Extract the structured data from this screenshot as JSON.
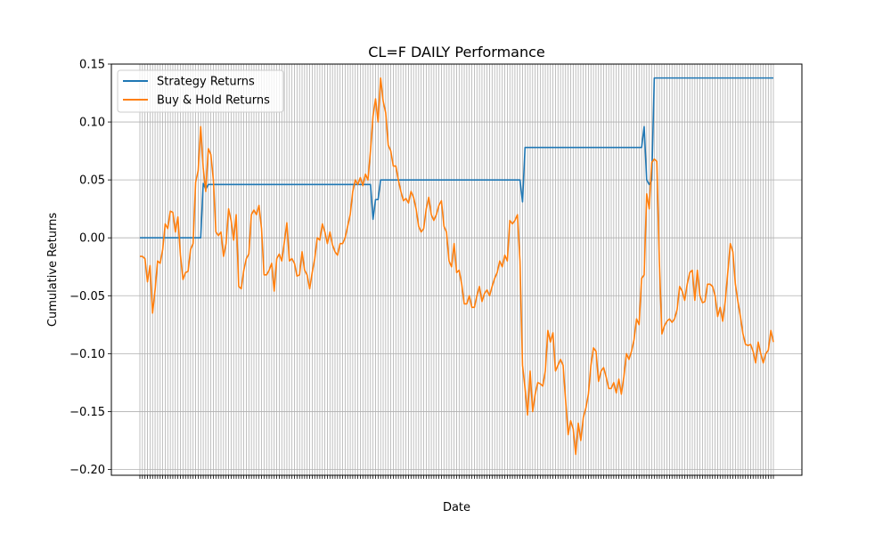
{
  "chart_data": {
    "type": "line",
    "title": "CL=F DAILY Performance",
    "xlabel": "Date",
    "ylabel": "Cumulative Returns",
    "ylim": [
      -0.205,
      0.15
    ],
    "yticks": [
      "0.15",
      "0.10",
      "0.05",
      "0.00",
      "−0.05",
      "−0.10",
      "−0.15",
      "−0.20"
    ],
    "ytick_values": [
      0.15,
      0.1,
      0.05,
      0.0,
      -0.05,
      -0.1,
      -0.15,
      -0.2
    ],
    "grid": true,
    "legend_position": "top-left",
    "n_points": 251,
    "series": [
      {
        "name": "Strategy Returns",
        "color": "#1f77b4",
        "keypoints": [
          [
            0,
            0.0
          ],
          [
            24,
            0.0
          ],
          [
            25,
            0.047
          ],
          [
            26,
            0.042
          ],
          [
            27,
            0.046
          ],
          [
            90,
            0.046
          ],
          [
            91,
            0.046
          ],
          [
            92,
            0.016
          ],
          [
            93,
            0.033
          ],
          [
            94,
            0.033
          ],
          [
            95,
            0.05
          ],
          [
            96,
            0.05
          ],
          [
            150,
            0.05
          ],
          [
            151,
            0.031
          ],
          [
            152,
            0.078
          ],
          [
            198,
            0.078
          ],
          [
            199,
            0.096
          ],
          [
            200,
            0.05
          ],
          [
            201,
            0.046
          ],
          [
            202,
            0.05
          ],
          [
            203,
            0.138
          ],
          [
            250,
            0.138
          ]
        ]
      },
      {
        "name": "Buy & Hold Returns",
        "color": "#ff7f0e",
        "keypoints": [
          [
            0,
            -0.016
          ],
          [
            1,
            -0.016
          ],
          [
            2,
            -0.018
          ],
          [
            3,
            -0.038
          ],
          [
            4,
            -0.024
          ],
          [
            5,
            -0.065
          ],
          [
            6,
            -0.045
          ],
          [
            7,
            -0.02
          ],
          [
            8,
            -0.022
          ],
          [
            9,
            -0.01
          ],
          [
            10,
            0.012
          ],
          [
            11,
            0.008
          ],
          [
            12,
            0.023
          ],
          [
            13,
            0.022
          ],
          [
            14,
            0.005
          ],
          [
            15,
            0.018
          ],
          [
            16,
            -0.015
          ],
          [
            17,
            -0.036
          ],
          [
            18,
            -0.03
          ],
          [
            19,
            -0.029
          ],
          [
            20,
            -0.01
          ],
          [
            21,
            -0.005
          ],
          [
            22,
            0.048
          ],
          [
            23,
            0.058
          ],
          [
            24,
            0.096
          ],
          [
            25,
            0.06
          ],
          [
            26,
            0.04
          ],
          [
            27,
            0.077
          ],
          [
            28,
            0.072
          ],
          [
            29,
            0.05
          ],
          [
            30,
            0.005
          ],
          [
            31,
            0.002
          ],
          [
            32,
            0.005
          ],
          [
            33,
            -0.016
          ],
          [
            34,
            -0.005
          ],
          [
            35,
            0.025
          ],
          [
            36,
            0.015
          ],
          [
            37,
            -0.002
          ],
          [
            38,
            0.02
          ],
          [
            39,
            -0.042
          ],
          [
            40,
            -0.044
          ],
          [
            41,
            -0.028
          ],
          [
            42,
            -0.018
          ],
          [
            43,
            -0.014
          ],
          [
            44,
            0.02
          ],
          [
            45,
            0.024
          ],
          [
            46,
            0.02
          ],
          [
            47,
            0.028
          ],
          [
            48,
            0.008
          ],
          [
            49,
            -0.032
          ],
          [
            50,
            -0.032
          ],
          [
            51,
            -0.028
          ],
          [
            52,
            -0.022
          ],
          [
            53,
            -0.046
          ],
          [
            54,
            -0.018
          ],
          [
            55,
            -0.014
          ],
          [
            56,
            -0.02
          ],
          [
            57,
            -0.004
          ],
          [
            58,
            0.013
          ],
          [
            59,
            -0.02
          ],
          [
            60,
            -0.018
          ],
          [
            61,
            -0.022
          ],
          [
            62,
            -0.033
          ],
          [
            63,
            -0.032
          ],
          [
            64,
            -0.012
          ],
          [
            65,
            -0.028
          ],
          [
            66,
            -0.032
          ],
          [
            67,
            -0.044
          ],
          [
            68,
            -0.03
          ],
          [
            69,
            -0.018
          ],
          [
            70,
            0.0
          ],
          [
            71,
            -0.002
          ],
          [
            72,
            0.012
          ],
          [
            73,
            0.005
          ],
          [
            74,
            -0.005
          ],
          [
            75,
            0.005
          ],
          [
            76,
            -0.006
          ],
          [
            77,
            -0.012
          ],
          [
            78,
            -0.015
          ],
          [
            79,
            -0.005
          ],
          [
            80,
            -0.005
          ],
          [
            81,
            0.0
          ],
          [
            82,
            0.01
          ],
          [
            83,
            0.02
          ],
          [
            84,
            0.04
          ],
          [
            85,
            0.05
          ],
          [
            86,
            0.046
          ],
          [
            87,
            0.052
          ],
          [
            88,
            0.045
          ],
          [
            89,
            0.055
          ],
          [
            90,
            0.05
          ],
          [
            91,
            0.075
          ],
          [
            92,
            0.105
          ],
          [
            93,
            0.12
          ],
          [
            94,
            0.1
          ],
          [
            95,
            0.138
          ],
          [
            96,
            0.118
          ],
          [
            97,
            0.108
          ],
          [
            98,
            0.08
          ],
          [
            99,
            0.075
          ],
          [
            100,
            0.062
          ],
          [
            101,
            0.062
          ],
          [
            102,
            0.05
          ],
          [
            103,
            0.04
          ],
          [
            104,
            0.032
          ],
          [
            105,
            0.034
          ],
          [
            106,
            0.03
          ],
          [
            107,
            0.04
          ],
          [
            108,
            0.035
          ],
          [
            109,
            0.025
          ],
          [
            110,
            0.01
          ],
          [
            111,
            0.005
          ],
          [
            112,
            0.008
          ],
          [
            113,
            0.025
          ],
          [
            114,
            0.035
          ],
          [
            115,
            0.02
          ],
          [
            116,
            0.015
          ],
          [
            117,
            0.02
          ],
          [
            118,
            0.028
          ],
          [
            119,
            0.032
          ],
          [
            120,
            0.01
          ],
          [
            121,
            0.005
          ],
          [
            122,
            -0.02
          ],
          [
            123,
            -0.025
          ],
          [
            124,
            -0.005
          ],
          [
            125,
            -0.03
          ],
          [
            126,
            -0.028
          ],
          [
            127,
            -0.04
          ],
          [
            128,
            -0.057
          ],
          [
            129,
            -0.057
          ],
          [
            130,
            -0.05
          ],
          [
            131,
            -0.06
          ],
          [
            132,
            -0.06
          ],
          [
            133,
            -0.05
          ],
          [
            134,
            -0.042
          ],
          [
            135,
            -0.055
          ],
          [
            136,
            -0.048
          ],
          [
            137,
            -0.045
          ],
          [
            138,
            -0.05
          ],
          [
            139,
            -0.042
          ],
          [
            140,
            -0.035
          ],
          [
            141,
            -0.03
          ],
          [
            142,
            -0.02
          ],
          [
            143,
            -0.025
          ],
          [
            144,
            -0.015
          ],
          [
            145,
            -0.02
          ],
          [
            146,
            0.015
          ],
          [
            147,
            0.012
          ],
          [
            148,
            0.015
          ],
          [
            149,
            0.02
          ],
          [
            150,
            -0.02
          ],
          [
            151,
            -0.11
          ],
          [
            152,
            -0.13
          ],
          [
            153,
            -0.153
          ],
          [
            154,
            -0.115
          ],
          [
            155,
            -0.15
          ],
          [
            156,
            -0.135
          ],
          [
            157,
            -0.125
          ],
          [
            158,
            -0.126
          ],
          [
            159,
            -0.128
          ],
          [
            160,
            -0.115
          ],
          [
            161,
            -0.08
          ],
          [
            162,
            -0.09
          ],
          [
            163,
            -0.082
          ],
          [
            164,
            -0.115
          ],
          [
            165,
            -0.11
          ],
          [
            166,
            -0.105
          ],
          [
            167,
            -0.11
          ],
          [
            168,
            -0.14
          ],
          [
            169,
            -0.17
          ],
          [
            170,
            -0.158
          ],
          [
            171,
            -0.165
          ],
          [
            172,
            -0.187
          ],
          [
            173,
            -0.16
          ],
          [
            174,
            -0.175
          ],
          [
            175,
            -0.155
          ],
          [
            176,
            -0.147
          ],
          [
            177,
            -0.135
          ],
          [
            178,
            -0.11
          ],
          [
            179,
            -0.095
          ],
          [
            180,
            -0.098
          ],
          [
            181,
            -0.124
          ],
          [
            182,
            -0.115
          ],
          [
            183,
            -0.112
          ],
          [
            184,
            -0.12
          ],
          [
            185,
            -0.13
          ],
          [
            186,
            -0.13
          ],
          [
            187,
            -0.125
          ],
          [
            188,
            -0.134
          ],
          [
            189,
            -0.122
          ],
          [
            190,
            -0.135
          ],
          [
            191,
            -0.12
          ],
          [
            192,
            -0.1
          ],
          [
            193,
            -0.105
          ],
          [
            194,
            -0.098
          ],
          [
            195,
            -0.088
          ],
          [
            196,
            -0.07
          ],
          [
            197,
            -0.075
          ],
          [
            198,
            -0.035
          ],
          [
            199,
            -0.032
          ],
          [
            200,
            0.038
          ],
          [
            201,
            0.025
          ],
          [
            202,
            0.065
          ],
          [
            203,
            0.068
          ],
          [
            204,
            0.066
          ],
          [
            205,
            -0.02
          ],
          [
            206,
            -0.083
          ],
          [
            207,
            -0.076
          ],
          [
            208,
            -0.072
          ],
          [
            209,
            -0.07
          ],
          [
            210,
            -0.073
          ],
          [
            211,
            -0.07
          ],
          [
            212,
            -0.062
          ],
          [
            213,
            -0.042
          ],
          [
            214,
            -0.046
          ],
          [
            215,
            -0.054
          ],
          [
            216,
            -0.04
          ],
          [
            217,
            -0.03
          ],
          [
            218,
            -0.028
          ],
          [
            219,
            -0.054
          ],
          [
            220,
            -0.028
          ],
          [
            221,
            -0.05
          ],
          [
            222,
            -0.056
          ],
          [
            223,
            -0.055
          ],
          [
            224,
            -0.04
          ],
          [
            225,
            -0.04
          ],
          [
            226,
            -0.042
          ],
          [
            227,
            -0.05
          ],
          [
            228,
            -0.068
          ],
          [
            229,
            -0.06
          ],
          [
            230,
            -0.072
          ],
          [
            231,
            -0.055
          ],
          [
            232,
            -0.03
          ],
          [
            233,
            -0.005
          ],
          [
            234,
            -0.012
          ],
          [
            235,
            -0.04
          ],
          [
            236,
            -0.055
          ],
          [
            237,
            -0.068
          ],
          [
            238,
            -0.083
          ],
          [
            239,
            -0.092
          ],
          [
            240,
            -0.093
          ],
          [
            241,
            -0.092
          ],
          [
            242,
            -0.098
          ],
          [
            243,
            -0.108
          ],
          [
            244,
            -0.09
          ],
          [
            245,
            -0.1
          ],
          [
            246,
            -0.108
          ],
          [
            247,
            -0.1
          ],
          [
            248,
            -0.097
          ],
          [
            249,
            -0.08
          ],
          [
            250,
            -0.09
          ]
        ]
      }
    ]
  }
}
